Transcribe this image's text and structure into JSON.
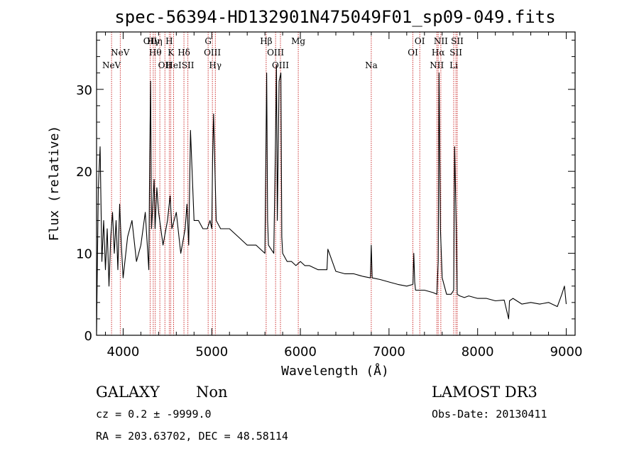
{
  "chart_data": {
    "type": "line",
    "title": "spec-56394-HD132901N475049F01_sp09-049.fits",
    "xlabel": "Wavelength (Å)",
    "ylabel": "Flux (relative)",
    "xlim": [
      3700,
      9100
    ],
    "ylim": [
      0,
      37
    ],
    "xticks": [
      "4000",
      "5000",
      "6000",
      "7000",
      "8000",
      "9000"
    ],
    "yticks": [
      "0",
      "10",
      "20",
      "30"
    ],
    "series": [
      {
        "name": "flux",
        "x": [
          3700,
          3720,
          3740,
          3760,
          3780,
          3800,
          3820,
          3840,
          3860,
          3880,
          3900,
          3920,
          3940,
          3960,
          3980,
          4000,
          4050,
          4100,
          4150,
          4200,
          4250,
          4290,
          4300,
          4310,
          4320,
          4340,
          4350,
          4360,
          4380,
          4400,
          4450,
          4500,
          4530,
          4550,
          4600,
          4650,
          4700,
          4720,
          4740,
          4760,
          4800,
          4850,
          4900,
          4950,
          4980,
          5000,
          5010,
          5020,
          5050,
          5100,
          5200,
          5300,
          5400,
          5500,
          5600,
          5620,
          5630,
          5640,
          5700,
          5720,
          5730,
          5740,
          5760,
          5780,
          5790,
          5800,
          5850,
          5900,
          5950,
          6000,
          6050,
          6100,
          6200,
          6300,
          6310,
          6400,
          6500,
          6600,
          6700,
          6790,
          6800,
          6810,
          6900,
          7000,
          7100,
          7200,
          7270,
          7280,
          7290,
          7300,
          7400,
          7500,
          7540,
          7555,
          7565,
          7580,
          7600,
          7650,
          7700,
          7730,
          7740,
          7760,
          7770,
          7800,
          7850,
          7900,
          8000,
          8100,
          8200,
          8300,
          8350,
          8360,
          8400,
          8500,
          8600,
          8700,
          8800,
          8900,
          8950,
          8980,
          9000
        ],
        "y": [
          0.5,
          18,
          23,
          9,
          14,
          8,
          13,
          6,
          12,
          15,
          10,
          14,
          8,
          16,
          11,
          7,
          12,
          14,
          9,
          11,
          15,
          8,
          22,
          31,
          13,
          17,
          19,
          13,
          18,
          15,
          11,
          14,
          17,
          13,
          15,
          10,
          13,
          16,
          11,
          25,
          14,
          14,
          13,
          13,
          14,
          13,
          22,
          27,
          14,
          13,
          13,
          12,
          11,
          11,
          10,
          32,
          14,
          11,
          10,
          24,
          33,
          14,
          31,
          32,
          12,
          10,
          9,
          9,
          8.5,
          9,
          8.5,
          8.5,
          8,
          8,
          10.5,
          7.8,
          7.5,
          7.5,
          7.2,
          7,
          11,
          7,
          6.8,
          6.5,
          6.2,
          6,
          6.2,
          10,
          6.5,
          5.5,
          5.5,
          5.2,
          5,
          9,
          32,
          13,
          7,
          5,
          5,
          5.5,
          23,
          13,
          5,
          4.8,
          4.6,
          4.8,
          4.5,
          4.5,
          4.2,
          4.3,
          2,
          4.2,
          4.5,
          3.8,
          4,
          3.8,
          4,
          3.5,
          5,
          6,
          3.8
        ]
      }
    ],
    "lines": [
      {
        "wavelength": 3869,
        "row": 2,
        "label": "NeV"
      },
      {
        "wavelength": 3967,
        "row": 1,
        "label": "NeV"
      },
      {
        "wavelength": 4304,
        "row": 0,
        "label": "OII"
      },
      {
        "wavelength": 4340,
        "row": 0,
        "label": "Hγ"
      },
      {
        "wavelength": 4363,
        "row": 1,
        "label": "Hθ"
      },
      {
        "wavelength": 4414,
        "row": 0,
        "label": "η"
      },
      {
        "wavelength": 4471,
        "row": 2,
        "label": "OII"
      },
      {
        "wavelength": 4520,
        "row": 0,
        "label": "H"
      },
      {
        "wavelength": 4538,
        "row": 1,
        "label": "K"
      },
      {
        "wavelength": 4570,
        "row": 2,
        "label": "HeI"
      },
      {
        "wavelength": 4686,
        "row": 1,
        "label": "Hδ"
      },
      {
        "wavelength": 4731,
        "row": 2,
        "label": "SII"
      },
      {
        "wavelength": 4959,
        "row": 0,
        "label": "G"
      },
      {
        "wavelength": 5007,
        "row": 1,
        "label": "OIII"
      },
      {
        "wavelength": 5040,
        "row": 2,
        "label": "Hγ"
      },
      {
        "wavelength": 5614,
        "row": 0,
        "label": "Hβ"
      },
      {
        "wavelength": 5720,
        "row": 1,
        "label": "OIII"
      },
      {
        "wavelength": 5775,
        "row": 2,
        "label": "OIII"
      },
      {
        "wavelength": 5976,
        "row": 0,
        "label": "Mg"
      },
      {
        "wavelength": 6800,
        "row": 2,
        "label": "Na"
      },
      {
        "wavelength": 7270,
        "row": 1,
        "label": "OI"
      },
      {
        "wavelength": 7347,
        "row": 0,
        "label": "OI"
      },
      {
        "wavelength": 7540,
        "row": 2,
        "label": "NII"
      },
      {
        "wavelength": 7555,
        "row": 1,
        "label": "Hα"
      },
      {
        "wavelength": 7585,
        "row": 0,
        "label": "NII"
      },
      {
        "wavelength": 7730,
        "row": 2,
        "label": "Li"
      },
      {
        "wavelength": 7755,
        "row": 1,
        "label": "SII"
      },
      {
        "wavelength": 7770,
        "row": 0,
        "label": "SII"
      }
    ]
  },
  "info": {
    "object_class": "GALAXY",
    "object_subclass": "Non",
    "survey": "LAMOST DR3",
    "redshift": "cz = 0.2 ± -9999.0",
    "obs_date": "Obs-Date: 20130411",
    "coords": "RA = 203.63702, DEC =  48.58114"
  },
  "colors": {
    "spectrum": "#000000",
    "line_marker": "#c00000",
    "frame": "#000000"
  }
}
